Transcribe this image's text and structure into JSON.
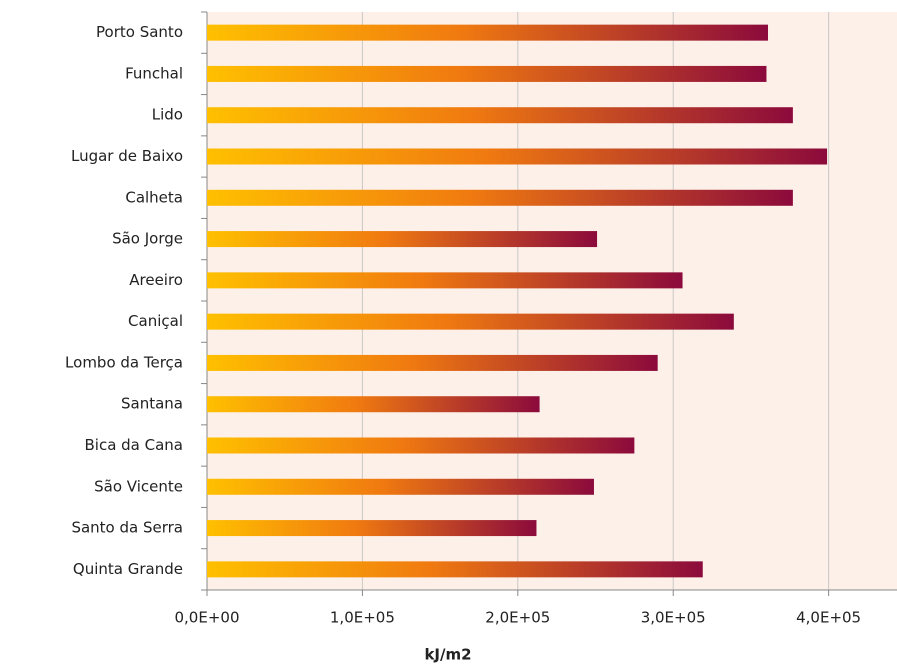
{
  "chart_data": {
    "type": "bar",
    "orientation": "horizontal",
    "x_label": "kJ/m2",
    "categories": [
      "Porto Santo",
      "Funchal",
      "Lido",
      "Lugar de Baixo",
      "Calheta",
      "São Jorge",
      "Areeiro",
      "Caniçal",
      "Lombo da Terça",
      "Santana",
      "Bica da Cana",
      "São Vicente",
      "Santo da Serra",
      "Quinta Grande"
    ],
    "values": [
      361000,
      360000,
      377000,
      399000,
      377000,
      251000,
      306000,
      339000,
      290000,
      214000,
      275000,
      249000,
      212000,
      319000
    ],
    "colors": [
      "#ffc000",
      "#f07a10",
      "#8b0a3c"
    ],
    "xlim": [
      0,
      444000
    ],
    "xticks": [
      {
        "value": 0,
        "label": "0,0E+00"
      },
      {
        "value": 100000,
        "label": "1,0E+05"
      },
      {
        "value": 200000,
        "label": "2,0E+05"
      },
      {
        "value": 300000,
        "label": "3,0E+05"
      },
      {
        "value": 400000,
        "label": "4,0E+05"
      }
    ],
    "grid": true
  }
}
